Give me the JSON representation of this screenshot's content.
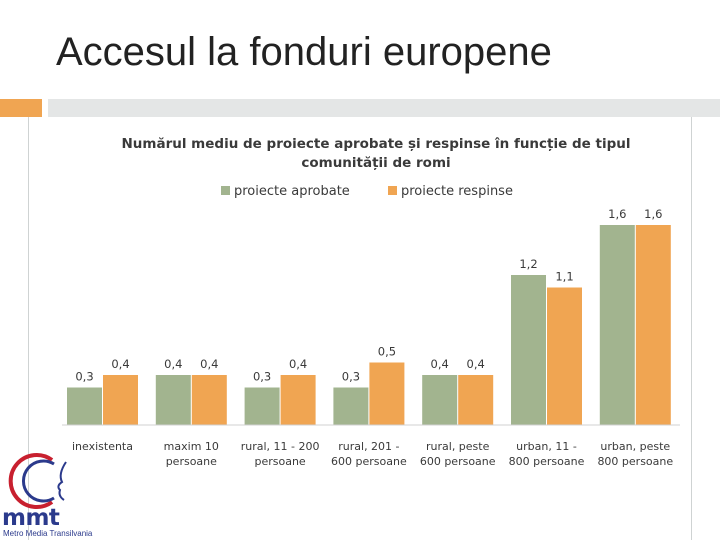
{
  "slide": {
    "title": "Accesul la fonduri europene"
  },
  "logo": {
    "text": "mmt",
    "subtitle": "Metro Media Transilvania"
  },
  "colors": {
    "approved": "#a2b48f",
    "rejected": "#f0a552",
    "accent": "#f0a552"
  },
  "chart_data": {
    "type": "bar",
    "title_lines": [
      "Numărul mediu de proiecte aprobate și respinse în funcție de tipul",
      "comunității de romi"
    ],
    "categories": [
      [
        "inexistenta"
      ],
      [
        "maxim 10",
        "persoane"
      ],
      [
        "rural, 11 - 200",
        "persoane"
      ],
      [
        "rural, 201 -",
        "600 persoane"
      ],
      [
        "rural, peste",
        "600 persoane"
      ],
      [
        "urban, 11 -",
        "800 persoane"
      ],
      [
        "urban, peste",
        "800 persoane"
      ]
    ],
    "series": [
      {
        "name": "proiecte aprobate",
        "color": "#a2b48f",
        "values": [
          0.3,
          0.4,
          0.3,
          0.3,
          0.4,
          1.2,
          1.6
        ],
        "labels": [
          "0,3",
          "0,4",
          "0,3",
          "0,3",
          "0,4",
          "1,2",
          "1,6"
        ]
      },
      {
        "name": "proiecte respinse",
        "color": "#f0a552",
        "values": [
          0.4,
          0.4,
          0.4,
          0.5,
          0.4,
          1.1,
          1.6
        ],
        "labels": [
          "0,4",
          "0,4",
          "0,4",
          "0,5",
          "0,4",
          "1,1",
          "1,6"
        ]
      }
    ],
    "ylim": [
      0,
      1.85
    ],
    "legend": "top-center",
    "grid": false
  }
}
